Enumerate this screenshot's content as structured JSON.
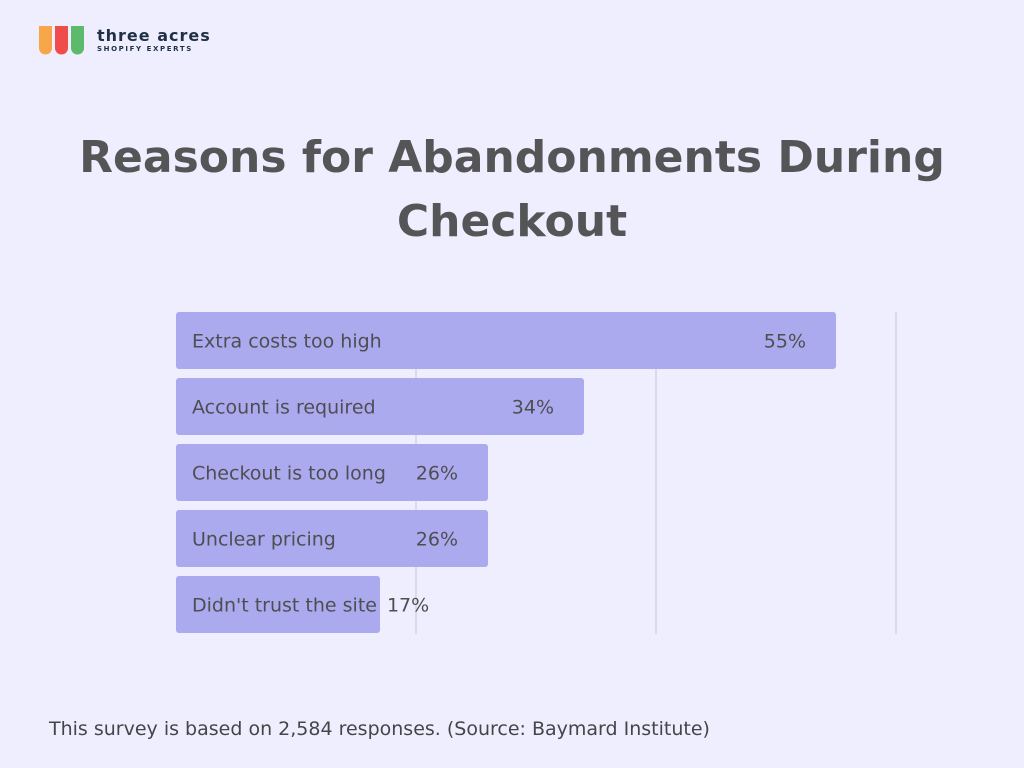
{
  "brand": {
    "name": "three acres",
    "tagline": "SHOPIFY EXPERTS",
    "colors": [
      "#f7a64a",
      "#ef4c4c",
      "#5dba6a"
    ]
  },
  "footnote": "This survey is based on 2,584 responses. (Source: Baymard Institute)",
  "chart_data": {
    "type": "bar",
    "orientation": "horizontal",
    "title": "Reasons for Abandonments During Checkout",
    "categories": [
      "Extra costs too high",
      "Account is required",
      "Checkout is too long",
      "Unclear pricing",
      "Didn't trust the site"
    ],
    "values": [
      55,
      34,
      26,
      26,
      17
    ],
    "value_labels": [
      "55%",
      "34%",
      "26%",
      "26%",
      "17%"
    ],
    "xlim": [
      0,
      60
    ],
    "grid": true,
    "bar_color": "#abaaee"
  }
}
